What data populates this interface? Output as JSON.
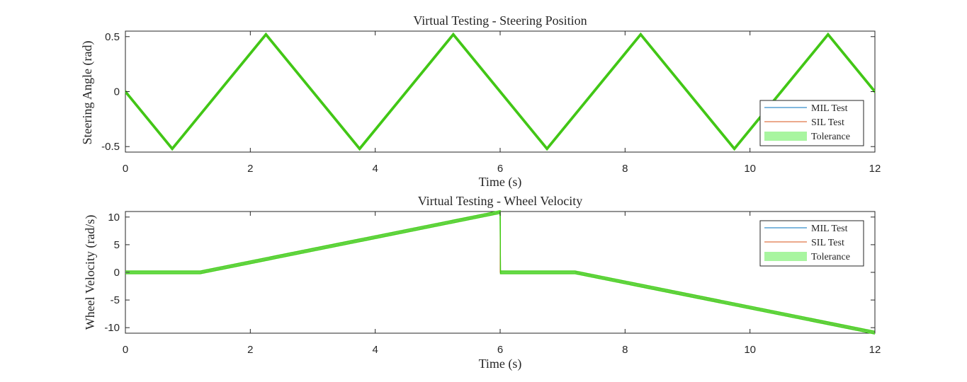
{
  "chart_data": [
    {
      "type": "line",
      "title": "Virtual Testing - Steering Position",
      "xlabel": "Time (s)",
      "ylabel": "Steering Angle (rad)",
      "xlim": [
        0,
        12
      ],
      "ylim": [
        -0.55,
        0.55
      ],
      "xticks": [
        0,
        2,
        4,
        6,
        8,
        10,
        12
      ],
      "xtick_labels": [
        "0",
        "2",
        "4",
        "6",
        "8",
        "10",
        "12"
      ],
      "yticks": [
        0.5,
        0,
        -0.5
      ],
      "ytick_labels": [
        "0.5",
        "0",
        "-0.5"
      ],
      "grid": false,
      "legend_position": "bottom-right",
      "series": [
        {
          "name": "MIL Test",
          "color": "#0072BD",
          "x": [
            0,
            0.75,
            2.25,
            3.75,
            5.25,
            6.75,
            8.25,
            9.75,
            11.25,
            12
          ],
          "y": [
            0,
            -0.52,
            0.52,
            -0.52,
            0.52,
            -0.52,
            0.52,
            -0.52,
            0.52,
            0
          ]
        },
        {
          "name": "SIL Test",
          "color": "#D95319",
          "x": [
            0,
            0.75,
            2.25,
            3.75,
            5.25,
            6.75,
            8.25,
            9.75,
            11.25,
            12
          ],
          "y": [
            0,
            -0.52,
            0.52,
            -0.52,
            0.52,
            -0.52,
            0.52,
            -0.52,
            0.52,
            0
          ]
        },
        {
          "name": "Tolerance",
          "color": "#A8F5A0",
          "edge_color": "#3ECB12",
          "x": [
            0,
            0.75,
            2.25,
            3.75,
            5.25,
            6.75,
            8.25,
            9.75,
            11.25,
            12
          ],
          "y": [
            0,
            -0.52,
            0.52,
            -0.52,
            0.52,
            -0.52,
            0.52,
            -0.52,
            0.52,
            0
          ],
          "band": 0.012
        }
      ]
    },
    {
      "type": "line",
      "title": "Virtual Testing - Wheel Velocity",
      "xlabel": "Time (s)",
      "ylabel": "Wheel Velocity (rad/s)",
      "xlim": [
        0,
        12
      ],
      "ylim": [
        -11,
        11
      ],
      "xticks": [
        0,
        2,
        4,
        6,
        8,
        10,
        12
      ],
      "xtick_labels": [
        "0",
        "2",
        "4",
        "6",
        "8",
        "10",
        "12"
      ],
      "yticks": [
        10,
        5,
        0,
        -5,
        -10
      ],
      "ytick_labels": [
        "10",
        "5",
        "0",
        "-5",
        "-10"
      ],
      "grid": false,
      "legend_position": "top-right",
      "series": [
        {
          "name": "MIL Test",
          "color": "#0072BD",
          "x": [
            0,
            1.2,
            6,
            6,
            7.2,
            12
          ],
          "y": [
            0,
            0,
            10.9,
            0,
            0,
            -10.9
          ]
        },
        {
          "name": "SIL Test",
          "color": "#D95319",
          "x": [
            0,
            1.2,
            6,
            6,
            7.2,
            12
          ],
          "y": [
            0,
            0,
            10.9,
            0,
            0,
            -10.9
          ]
        },
        {
          "name": "Tolerance",
          "color": "#A8F5A0",
          "edge_color": "#3ECB12",
          "x": [
            0,
            1.2,
            6,
            6.005,
            7.2,
            12
          ],
          "y": [
            0,
            0,
            10.9,
            0,
            0,
            -10.9
          ],
          "band": 0.25
        }
      ]
    }
  ]
}
